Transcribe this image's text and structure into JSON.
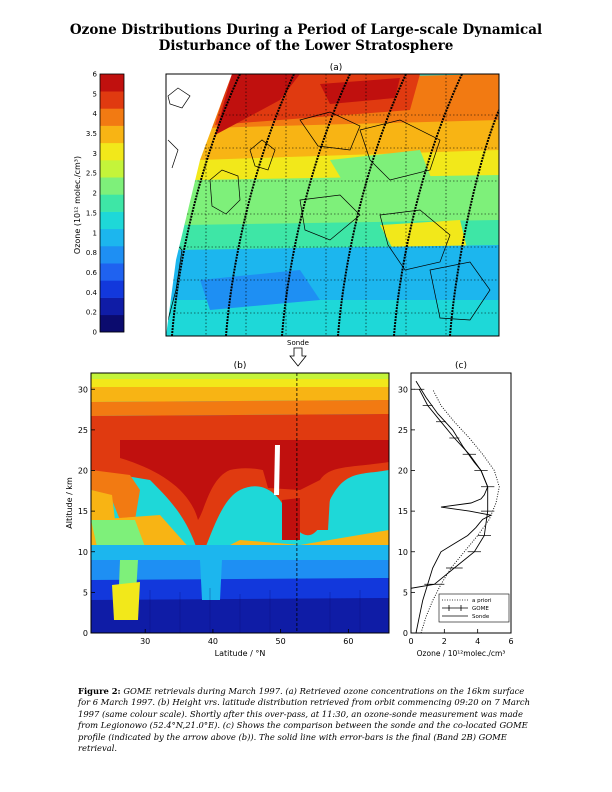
{
  "title": {
    "line1": "Ozone Distributions During a Period of Large-scale Dynamical",
    "line2": "Disturbance of the Lower Stratosphere"
  },
  "panel_labels": {
    "a": "(a)",
    "b": "(b)",
    "c": "(c)"
  },
  "sonde_label": "Sonde",
  "colorbar": {
    "label": "Ozone (10¹² molec./cm³)",
    "ticks": [
      "0",
      "0.2",
      "0.4",
      "0.6",
      "0.8",
      "1",
      "1.5",
      "2",
      "2.5",
      "3",
      "3.5",
      "4",
      "5",
      "6"
    ],
    "colors": [
      "#0b0b6e",
      "#0f1ca6",
      "#1238dc",
      "#1f62f0",
      "#1e8ff3",
      "#1cb6ee",
      "#1ed8d8",
      "#3ee6a6",
      "#7ef07a",
      "#c4f43a",
      "#f2e81a",
      "#f8b414",
      "#f27a12",
      "#e03a10",
      "#c0100e"
    ]
  },
  "caption": {
    "label": "Figure 2:",
    "text": "GOME retrievals during March 1997. (a) Retrieved ozone concentrations on the 16km surface for 6 March 1997. (b) Height vrs. latitude distribution retrieved from orbit commencing 09:20 on 7 March 1997 (same colour scale). Shortly after this over-pass, at 11:30, an ozone-sonde measurement was made from Legionowo (52.4°N,21.0°E). (c) Shows the comparison between the sonde and the co-located GOME profile (indicated by the arrow above (b)). The solid line with error-bars is the final (Band 2B) GOME retrieval."
  },
  "chart_data": [
    {
      "panel": "(a)",
      "type": "heatmap",
      "description_of_axes": "map, unlabeled axes",
      "colorbar_range": [
        0,
        6
      ]
    },
    {
      "panel": "(b)",
      "type": "heatmap",
      "xlabel": "Latitude / °N",
      "ylabel": "Altitude / km",
      "xlim": [
        22,
        66
      ],
      "ylim": [
        0,
        32
      ],
      "xticks": [
        30,
        40,
        50,
        60
      ],
      "yticks": [
        0,
        5,
        10,
        15,
        20,
        25,
        30
      ],
      "sonde_latitude": 52.4
    },
    {
      "panel": "(c)",
      "type": "line",
      "xlabel": "Ozone / 10¹²molec./cm³",
      "ylabel": "",
      "xlim": [
        0,
        6
      ],
      "ylim": [
        0,
        32
      ],
      "xticks": [
        0,
        2,
        4,
        6
      ],
      "yticks": [
        0,
        5,
        10,
        15,
        20,
        25,
        30
      ],
      "legend": [
        "a priori",
        "GOME",
        "Sonde"
      ],
      "legend_position": "bottom-right",
      "series": [
        {
          "name": "a priori",
          "style": "dotted",
          "x": [
            0.6,
            0.9,
            1.3,
            1.8,
            2.4,
            3.2,
            4.0,
            4.7,
            5.1,
            5.3,
            5.0,
            4.3,
            3.5,
            2.6,
            1.8,
            1.3
          ],
          "y": [
            0,
            2,
            4,
            6,
            8,
            10,
            12,
            14,
            16,
            18,
            20,
            22,
            24,
            26,
            28,
            30
          ]
        },
        {
          "name": "GOME",
          "style": "solid-errorbars",
          "x": [
            0.0,
            0.0,
            1.4,
            2.6,
            3.8,
            4.4,
            4.6,
            4.6,
            4.2,
            3.5,
            2.6,
            1.8,
            1.0,
            0.5
          ],
          "y": [
            0,
            5.5,
            6,
            8,
            10,
            12,
            15,
            18,
            20,
            22,
            24,
            26,
            28,
            30
          ],
          "xerr": [
            0,
            0,
            0.6,
            0.5,
            0.4,
            0.4,
            0.4,
            0.4,
            0.4,
            0.4,
            0.3,
            0.3,
            0.3,
            0.3
          ]
        },
        {
          "name": "Sonde",
          "style": "solid",
          "x": [
            0.3,
            0.5,
            0.7,
            1.0,
            1.3,
            1.8,
            2.6,
            3.4,
            3.9,
            4.1,
            4.3,
            4.8,
            3.5,
            1.8,
            3.6,
            4.2,
            4.4,
            4.6,
            4.4,
            4.2,
            3.8,
            3.1,
            2.5,
            1.6,
            0.9,
            0.3
          ],
          "y": [
            0,
            2,
            4,
            6,
            8,
            10,
            11,
            12,
            13,
            13.5,
            14,
            14.5,
            15,
            15.5,
            16,
            16.5,
            17,
            18,
            19,
            20,
            21,
            23,
            25,
            27,
            29,
            31
          ]
        }
      ]
    }
  ]
}
